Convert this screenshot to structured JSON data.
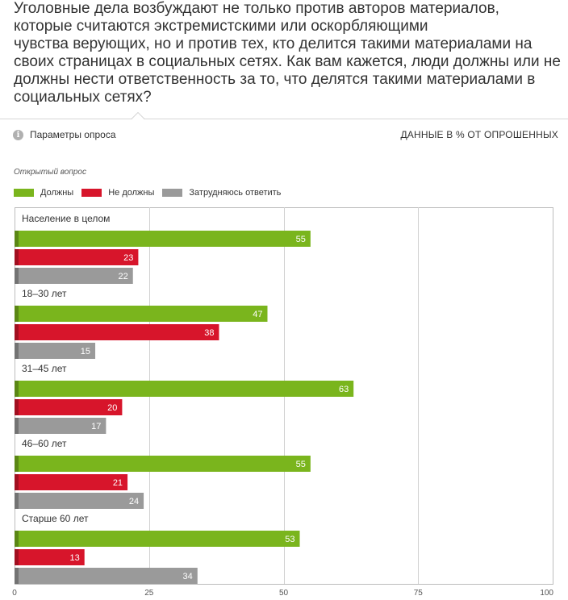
{
  "question": "Уголовные дела возбуждают не только против авторов материалов,\nкоторые считаются экстремистскими или оскорбляющими\nчувства верующих, но и против тех, кто делится такими материалами на\nсвоих страницах в социальных сетях. Как вам кажется, люди должны или не\nдолжны нести ответственность за то, что делятся такими материалами в\nсоциальных сетях?",
  "params_label": "Параметры опроса",
  "info_icon": "i",
  "data_label": "ДАННЫЕ В % ОТ ОПРОШЕННЫХ",
  "question_type": "Открытый вопрос",
  "colors": {
    "green": "#7ab51d",
    "red": "#d7152b",
    "gray": "#9a9a9a",
    "grid": "#d0d0d0",
    "frame": "#bdbdbd"
  },
  "chart_data": {
    "type": "bar",
    "orientation": "horizontal",
    "categories": [
      "Население в целом",
      "18–30 лет",
      "31–45 лет",
      "46–60 лет",
      "Старше 60 лет"
    ],
    "series": [
      {
        "name": "Должны",
        "color": "#7ab51d",
        "values": [
          55,
          47,
          63,
          55,
          53
        ]
      },
      {
        "name": "Не должны",
        "color": "#d7152b",
        "values": [
          23,
          38,
          20,
          21,
          13
        ]
      },
      {
        "name": "Затрудняюсь ответить",
        "color": "#9a9a9a",
        "values": [
          22,
          15,
          17,
          24,
          34
        ]
      }
    ],
    "xlim": [
      0,
      100
    ],
    "xticks": [
      0,
      25,
      50,
      75,
      100
    ],
    "grid": true,
    "legend_position": "top-left",
    "data_labels": true
  }
}
